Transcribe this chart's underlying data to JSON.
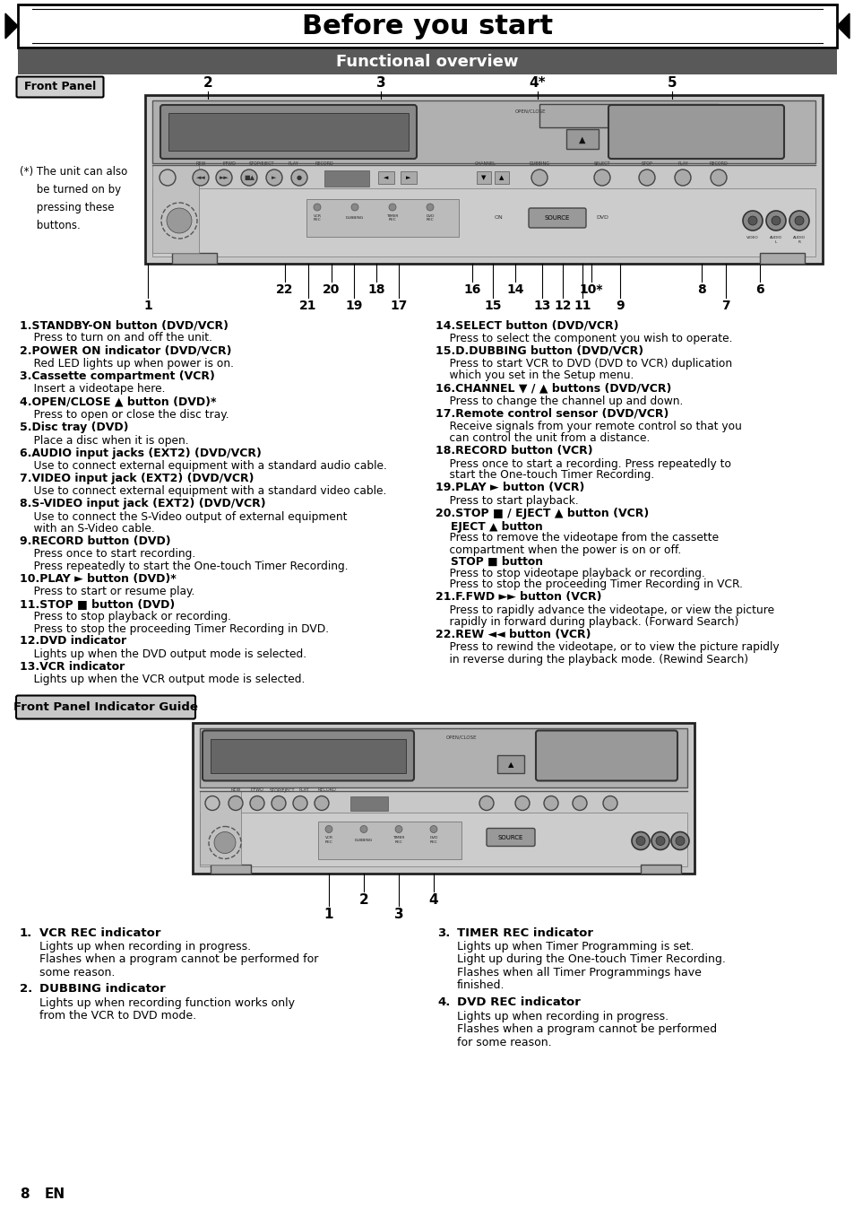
{
  "title": "Before you start",
  "subtitle": "Functional overview",
  "front_panel_label": "Front Panel",
  "front_panel_indicator_label": "Front Panel Indicator Guide",
  "page_number": "8",
  "page_lang": "EN",
  "note_text": "(*) The unit can also\n     be turned on by\n     pressing these\n     buttons.",
  "left_col_items": [
    {
      "bold": "1.STANDBY-ON button (DVD/VCR)",
      "text": "    Press to turn on and off the unit."
    },
    {
      "bold": "2.POWER ON indicator (DVD/VCR)",
      "text": "    Red LED lights up when power is on."
    },
    {
      "bold": "3.Cassette compartment (VCR)",
      "text": "    Insert a videotape here."
    },
    {
      "bold": "4.OPEN/CLOSE ▲ button (DVD)*",
      "text": "    Press to open or close the disc tray."
    },
    {
      "bold": "5.Disc tray (DVD)",
      "text": "    Place a disc when it is open."
    },
    {
      "bold": "6.AUDIO input jacks (EXT2) (DVD/VCR)",
      "text": "    Use to connect external equipment with a standard audio cable."
    },
    {
      "bold": "7.VIDEO input jack (EXT2) (DVD/VCR)",
      "text": "    Use to connect external equipment with a standard video cable."
    },
    {
      "bold": "8.S-VIDEO input jack (EXT2) (DVD/VCR)",
      "text": "    Use to connect the S-Video output of external equipment\n    with an S-Video cable."
    },
    {
      "bold": "9.RECORD button (DVD)",
      "text": "    Press once to start recording.\n    Press repeatedly to start the One-touch Timer Recording."
    },
    {
      "bold": "10.PLAY ► button (DVD)*",
      "text": "    Press to start or resume play."
    },
    {
      "bold": "11.STOP ■ button (DVD)",
      "text": "    Press to stop playback or recording.\n    Press to stop the proceeding Timer Recording in DVD."
    },
    {
      "bold": "12.DVD indicator",
      "text": "    Lights up when the DVD output mode is selected."
    },
    {
      "bold": "13.VCR indicator",
      "text": "    Lights up when the VCR output mode is selected."
    }
  ],
  "right_col_items": [
    {
      "bold": "14.SELECT button (DVD/VCR)",
      "text": "    Press to select the component you wish to operate."
    },
    {
      "bold": "15.D.DUBBING button (DVD/VCR)",
      "text": "    Press to start VCR to DVD (DVD to VCR) duplication\n    which you set in the Setup menu."
    },
    {
      "bold": "16.CHANNEL ▼ / ▲ buttons (DVD/VCR)",
      "text": "    Press to change the channel up and down."
    },
    {
      "bold": "17.Remote control sensor (DVD/VCR)",
      "text": "    Receive signals from your remote control so that you\n    can control the unit from a distance."
    },
    {
      "bold": "18.RECORD button (VCR)",
      "text": "    Press once to start a recording. Press repeatedly to\n    start the One-touch Timer Recording."
    },
    {
      "bold": "19.PLAY ► button (VCR)",
      "text": "    Press to start playback."
    },
    {
      "bold": "20.STOP ■ / EJECT ▲ button (VCR)",
      "lines": [
        {
          "text": "    EJECT ▲ button",
          "bold": true
        },
        {
          "text": "    Press to remove the videotape from the cassette",
          "bold": false
        },
        {
          "text": "    compartment when the power is on or off.",
          "bold": false
        },
        {
          "text": "    STOP ■ button",
          "bold": true
        },
        {
          "text": "    Press to stop videotape playback or recording.",
          "bold": false
        },
        {
          "text": "    Press to stop the proceeding Timer Recording in VCR.",
          "bold": false
        }
      ]
    },
    {
      "bold": "21.F.FWD ►► button (VCR)",
      "text": "    Press to rapidly advance the videotape, or view the picture\n    rapidly in forward during playback. (Forward Search)"
    },
    {
      "bold": "22.REW ◄◄ button (VCR)",
      "text": "    Press to rewind the videotape, or to view the picture rapidly\n    in reverse during the playback mode. (Rewind Search)"
    }
  ],
  "bottom_left_items": [
    {
      "num": "1.",
      "bold": "VCR REC indicator",
      "text": "Lights up when recording in progress.\nFlashes when a program cannot be performed for\nsome reason."
    },
    {
      "num": "2.",
      "bold": "DUBBING indicator",
      "text": "Lights up when recording function works only\nfrom the VCR to DVD mode."
    }
  ],
  "bottom_right_items": [
    {
      "num": "3.",
      "bold": "TIMER REC indicator",
      "text": "Lights up when Timer Programming is set.\nLight up during the One-touch Timer Recording.\nFlashes when all Timer Programmings have\nfinished."
    },
    {
      "num": "4.",
      "bold": "DVD REC indicator",
      "text": "Lights up when recording in progress.\nFlashes when a program cannot be performed\nfor some reason."
    }
  ]
}
